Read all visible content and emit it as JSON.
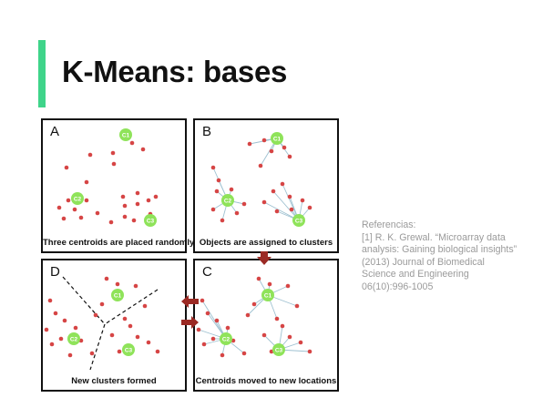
{
  "slide": {
    "title": "K-Means: bases",
    "accent_color": "#3fd48a"
  },
  "colors": {
    "point": "#d64545",
    "centroid": "#8fe35a",
    "link": "#9ec1d1",
    "arrow": "#9b2a24"
  },
  "panels": {
    "A": {
      "letter": "A",
      "caption": "Three centroids are placed randomly",
      "centroids": [
        "C1",
        "C2",
        "C3"
      ]
    },
    "B": {
      "letter": "B",
      "caption": "Objects are assigned to clusters",
      "centroids": [
        "C1",
        "C2",
        "C3"
      ]
    },
    "C": {
      "letter": "C",
      "caption": "Centroids moved to new locations",
      "centroids": [
        "C1",
        "C2",
        "C3"
      ]
    },
    "D": {
      "letter": "D",
      "caption": "New clusters formed",
      "centroids": [
        "C1",
        "C2",
        "C3"
      ]
    }
  },
  "references": {
    "heading": "Referencias:",
    "lines": [
      "[1] R. K. Grewal. “Microarray data",
      "analysis: Gaining biological insights”",
      "(2013) Journal of Biomedical",
      "Science and Engineering",
      "06(10):996-1005"
    ]
  }
}
